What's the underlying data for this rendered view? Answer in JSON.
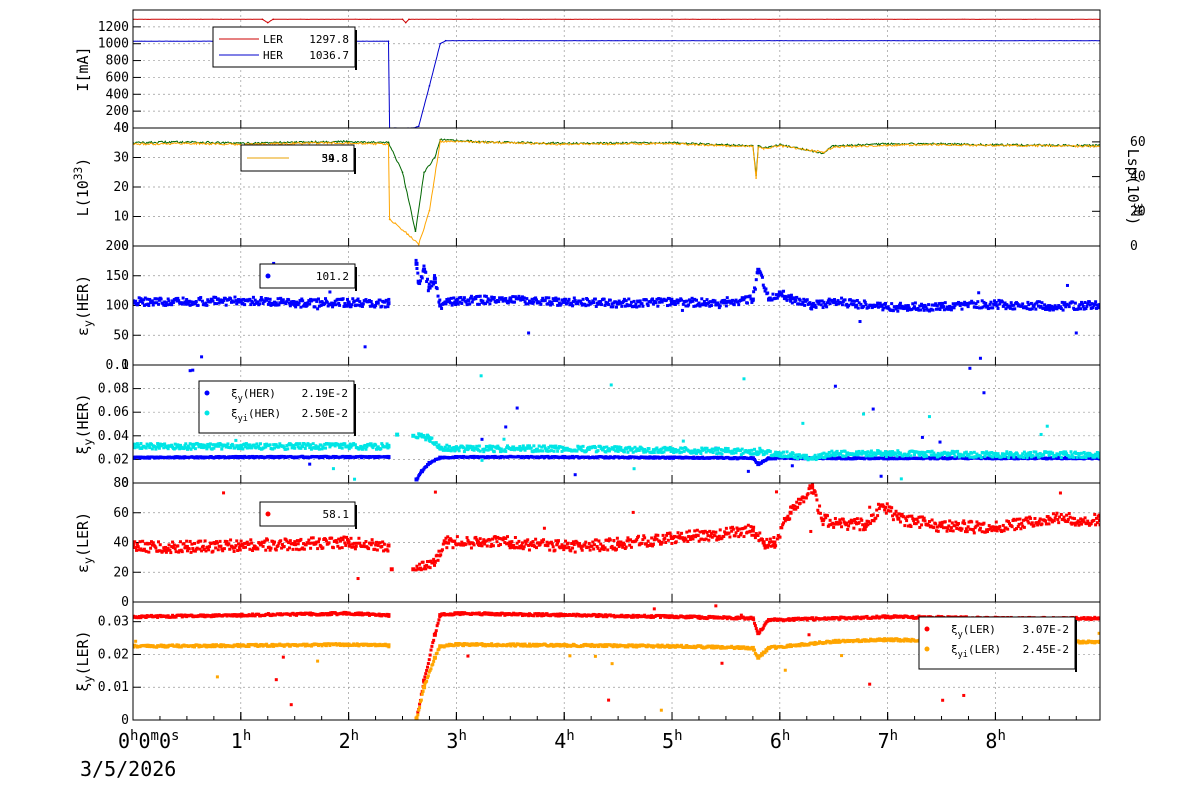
{
  "date_label": "3/5/2026",
  "x_axis": {
    "ticks": [
      {
        "t": 0,
        "label": "0",
        "sup": "h"
      },
      {
        "t": 1,
        "label": "1",
        "sup": "h"
      },
      {
        "t": 2,
        "label": "2",
        "sup": "h"
      },
      {
        "t": 3,
        "label": "3",
        "sup": "h"
      },
      {
        "t": 4,
        "label": "4",
        "sup": "h"
      },
      {
        "t": 5,
        "label": "5",
        "sup": "h"
      },
      {
        "t": 6,
        "label": "6",
        "sup": "h"
      },
      {
        "t": 7,
        "label": "7",
        "sup": "h"
      },
      {
        "t": 8,
        "label": "8",
        "sup": "h"
      }
    ],
    "first_label_parts": [
      "0",
      "h",
      "0",
      "m",
      "0",
      "s"
    ],
    "range": [
      0,
      8.97
    ]
  },
  "colors": {
    "ler_current": "#cc0000",
    "her_current": "#0000cc",
    "lum_dark": "#006600",
    "lum_orange": "#e8a000",
    "her_blue": "#0000ff",
    "cyan": "#00e5e5",
    "ler_red": "#ff0000",
    "orange": "#ffa500",
    "grid": "#999999"
  },
  "chart_data": [
    {
      "type": "line",
      "ylabel": "I[mA]",
      "ylim": [
        0,
        1400
      ],
      "yticks": [
        0,
        200,
        400,
        600,
        800,
        1000,
        1200
      ],
      "grid": true,
      "legend_placement": "top-left",
      "series": [
        {
          "name": "LER",
          "legend_value": "1297.8",
          "x": [
            0,
            1.2,
            1.25,
            1.3,
            2.5,
            2.53,
            2.56,
            8.97
          ],
          "y": [
            1290,
            1290,
            1250,
            1290,
            1290,
            1250,
            1290,
            1290
          ]
        },
        {
          "name": "HER",
          "legend_value": "1036.7",
          "x": [
            0,
            2.37,
            2.38,
            2.6,
            2.65,
            2.75,
            2.85,
            2.9,
            8.97
          ],
          "y": [
            1030,
            1030,
            0,
            0,
            20,
            500,
            1000,
            1036,
            1036
          ]
        }
      ]
    },
    {
      "type": "line",
      "ylabel": "L(10^33)",
      "y2label": "Lsp(10^30)",
      "ylim": [
        0,
        40
      ],
      "y2lim": [
        0,
        68
      ],
      "yticks": [
        0,
        10,
        20,
        30,
        40
      ],
      "y2ticks": [
        0,
        20,
        40,
        60
      ],
      "grid": true,
      "legend_placement": "top-left",
      "legend_value": "34.8",
      "legend_value2": "59.8",
      "series": [
        {
          "color": "dark-green",
          "x": [
            0,
            0.5,
            1,
            1.5,
            2,
            2.37,
            2.5,
            2.62,
            2.7,
            2.8,
            2.85,
            3.2,
            4,
            4.5,
            5,
            5.5,
            5.75,
            5.78,
            5.8,
            5.85,
            6,
            6.4,
            6.5,
            7,
            7.5,
            8,
            8.97
          ],
          "y": [
            35,
            35.3,
            34.8,
            35.2,
            35.4,
            35,
            25,
            5,
            25,
            30,
            36,
            35.3,
            34.8,
            34.9,
            35,
            34.3,
            34,
            24,
            34,
            33.2,
            34.3,
            31.5,
            34,
            34.6,
            34.6,
            34.3,
            34
          ]
        },
        {
          "color": "orange",
          "x": [
            0,
            0.5,
            1,
            1.5,
            2,
            2.37,
            2.38,
            2.55,
            2.65,
            2.75,
            2.85,
            3.2,
            4,
            4.5,
            5,
            5.5,
            5.75,
            5.78,
            5.8,
            5.85,
            6,
            6.4,
            6.5,
            7,
            7.5,
            8,
            8.97
          ],
          "y": [
            34.5,
            34.8,
            34.4,
            34.8,
            35,
            34.5,
            9,
            4,
            0.5,
            12,
            35.5,
            35.2,
            34.5,
            34.6,
            34.7,
            34,
            33.8,
            23,
            33.5,
            33,
            34,
            31.8,
            33.5,
            34.2,
            34.3,
            34.1,
            33.8
          ]
        }
      ]
    },
    {
      "type": "scatter",
      "ylabel": "εy(HER)",
      "ylim": [
        0,
        200
      ],
      "yticks": [
        0,
        50,
        100,
        150,
        200
      ],
      "grid": true,
      "legend_placement": "top-left",
      "series": [
        {
          "legend_value": "101.2",
          "color": "blue",
          "x": [
            0,
            0.5,
            1,
            1.5,
            2,
            2.37,
            2.63,
            2.65,
            2.7,
            2.75,
            2.8,
            2.85,
            3,
            3.5,
            4,
            4.5,
            5,
            5.5,
            5.75,
            5.8,
            5.9,
            6,
            6.1,
            6.3,
            6.5,
            7,
            7.5,
            8,
            8.5,
            8.97
          ],
          "y": [
            107,
            106,
            108,
            104,
            105,
            104,
            170,
            140,
            160,
            130,
            145,
            100,
            108,
            110,
            106,
            104,
            105,
            106,
            110,
            160,
            110,
            122,
            112,
            100,
            107,
            97,
            98,
            102,
            99,
            100
          ]
        }
      ]
    },
    {
      "type": "scatter",
      "ylabel": "ξy(HER)",
      "ylim": [
        0,
        0.1
      ],
      "yticks": [
        0,
        0.02,
        0.04,
        0.06,
        0.08,
        0.1
      ],
      "ytick_labels": [
        "0",
        "0.02",
        "0.04",
        "0.06",
        "0.08",
        "0.1"
      ],
      "grid": true,
      "legend_placement": "top-left",
      "series": [
        {
          "name": "ξy(HER)",
          "legend_value": "2.19E-2",
          "color": "blue",
          "x": [
            0,
            1,
            2,
            2.37,
            2.63,
            2.68,
            2.75,
            2.85,
            3,
            4,
            5,
            5.75,
            5.8,
            5.9,
            6.5,
            7,
            8,
            8.97
          ],
          "y": [
            0.0215,
            0.022,
            0.022,
            0.022,
            0.003,
            0.01,
            0.017,
            0.0215,
            0.022,
            0.022,
            0.0215,
            0.021,
            0.016,
            0.021,
            0.021,
            0.021,
            0.021,
            0.021
          ]
        },
        {
          "name": "ξyi(HER)",
          "legend_value": "2.50E-2",
          "color": "cyan",
          "x": [
            0,
            1,
            2,
            2.37,
            2.45,
            2.6,
            2.75,
            2.85,
            3,
            4,
            5,
            5.5,
            5.8,
            6,
            6.3,
            6.5,
            7,
            8,
            8.97
          ],
          "y": [
            0.031,
            0.031,
            0.031,
            0.031,
            0.041,
            0.04,
            0.038,
            0.03,
            0.029,
            0.029,
            0.028,
            0.027,
            0.026,
            0.025,
            0.021,
            0.025,
            0.025,
            0.024,
            0.024
          ]
        }
      ]
    },
    {
      "type": "scatter",
      "ylabel": "εy(LER)",
      "ylim": [
        0,
        80
      ],
      "yticks": [
        0,
        20,
        40,
        60,
        80
      ],
      "grid": true,
      "legend_placement": "top-left",
      "series": [
        {
          "legend_value": "58.1",
          "color": "red",
          "x": [
            0,
            0.5,
            1,
            1.5,
            2,
            2.37,
            2.4,
            2.6,
            2.8,
            2.9,
            3.2,
            3.5,
            4,
            4.5,
            5,
            5.5,
            5.75,
            5.85,
            5.95,
            6.1,
            6.3,
            6.4,
            6.55,
            6.8,
            6.95,
            7.1,
            7.5,
            8,
            8.5,
            8.97
          ],
          "y": [
            37,
            37,
            38,
            39,
            40,
            38,
            22,
            22,
            27,
            40,
            40,
            40,
            37,
            39,
            43,
            46,
            48,
            40,
            40,
            60,
            77,
            55,
            53,
            52,
            65,
            56,
            51,
            50,
            56,
            55
          ]
        }
      ]
    },
    {
      "type": "scatter",
      "ylabel": "ξy(LER)",
      "ylim": [
        0,
        0.036
      ],
      "yticks": [
        0,
        0.01,
        0.02,
        0.03
      ],
      "ytick_labels": [
        "0",
        "0.01",
        "0.02",
        "0.03"
      ],
      "grid": true,
      "legend_placement": "top-right",
      "series": [
        {
          "name": "ξy(LER)",
          "legend_value": "3.07E-2",
          "color": "red",
          "x": [
            0,
            1,
            2,
            2.37,
            2.63,
            2.7,
            2.8,
            2.85,
            3,
            4,
            5,
            5.75,
            5.8,
            5.9,
            6.5,
            7,
            8,
            8.97
          ],
          "y": [
            0.0315,
            0.032,
            0.0325,
            0.032,
            0,
            0.012,
            0.026,
            0.032,
            0.0325,
            0.032,
            0.0315,
            0.031,
            0.0265,
            0.0305,
            0.031,
            0.0315,
            0.031,
            0.031
          ]
        },
        {
          "name": "ξyi(LER)",
          "legend_value": "2.45E-2",
          "color": "orange",
          "x": [
            0,
            1,
            2,
            2.37,
            2.63,
            2.7,
            2.8,
            2.85,
            3,
            4,
            5,
            5.75,
            5.8,
            5.9,
            6.5,
            7,
            8,
            8.97
          ],
          "y": [
            0.0225,
            0.0227,
            0.023,
            0.0228,
            0,
            0.01,
            0.019,
            0.0225,
            0.023,
            0.0228,
            0.0225,
            0.022,
            0.019,
            0.022,
            0.024,
            0.0245,
            0.0238,
            0.0238
          ]
        }
      ]
    }
  ]
}
